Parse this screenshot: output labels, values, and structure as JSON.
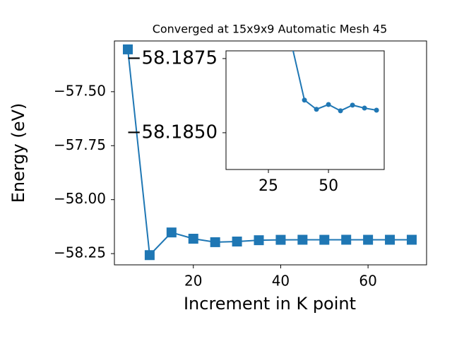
{
  "chart_data": [
    {
      "type": "line",
      "title": "Converged at 15x9x9 Automatic Mesh 45",
      "x_label": "Increment in K point",
      "y_label": "Energy (eV)",
      "x": [
        5,
        10,
        15,
        20,
        25,
        30,
        35,
        40,
        45,
        50,
        55,
        60,
        65,
        70
      ],
      "series": [
        {
          "color": "#1f77b4",
          "marker": "square",
          "values": [
            -57.304,
            -58.257,
            -58.152,
            -58.181,
            -58.197,
            -58.194,
            -58.1879,
            -58.1861,
            -58.1858,
            -58.186,
            -58.1857,
            -58.1859,
            -58.1858,
            -58.1858
          ]
        }
      ],
      "xlim": [
        1.93,
        73.4
      ],
      "ylim": [
        -58.302,
        -57.265
      ],
      "xticks": [
        20,
        40,
        60
      ],
      "yticks": [
        {
          "value": -57.5,
          "label": "−57.50"
        },
        {
          "value": -57.75,
          "label": "−57.75"
        },
        {
          "value": -58.0,
          "label": "−58.00"
        },
        {
          "value": -58.25,
          "label": "−58.25"
        }
      ]
    },
    {
      "type": "line",
      "x": [
        35,
        40,
        45,
        50,
        55,
        60,
        65,
        70
      ],
      "series": [
        {
          "color": "#1f77b4",
          "marker": "circle",
          "values": [
            -58.18786,
            -58.1861,
            -58.18579,
            -58.18595,
            -58.18574,
            -58.18593,
            -58.18583,
            -58.18576
          ]
        }
      ],
      "xlim": [
        7.35,
        73.2
      ],
      "ylim": [
        -58.18376,
        -58.18776
      ],
      "xticks": [
        25,
        50
      ],
      "yticks": [
        {
          "value": -58.1875,
          "label": "−58.1875"
        },
        {
          "value": -58.185,
          "label": "−58.1850"
        }
      ]
    }
  ]
}
